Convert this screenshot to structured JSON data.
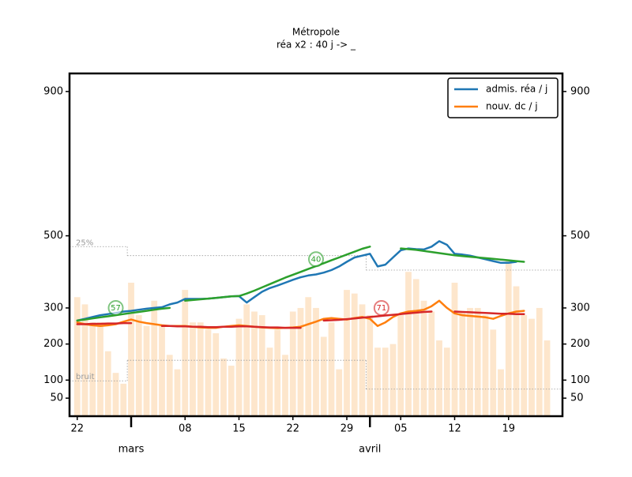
{
  "chart_data": {
    "type": "line",
    "title": "Métropole",
    "subtitle": "réa x2 : 40 j -> _",
    "x": [
      0,
      1,
      2,
      3,
      4,
      5,
      6,
      7,
      8,
      9,
      10,
      11,
      12,
      13,
      14,
      15,
      16,
      17,
      18,
      19,
      20,
      21,
      22,
      23,
      24,
      25,
      26,
      27,
      28,
      29,
      30,
      31,
      32,
      33,
      34,
      35,
      36,
      37,
      38,
      39,
      40,
      41,
      42,
      43,
      44,
      45,
      46,
      47,
      48,
      49,
      50,
      51,
      52,
      53,
      54,
      55,
      56,
      57,
      58,
      59,
      60,
      61,
      62
    ],
    "xlim": [
      -1,
      63
    ],
    "xticks": [
      {
        "value": 0,
        "label": "22"
      },
      {
        "value": 14,
        "label": "08"
      },
      {
        "value": 21,
        "label": "15"
      },
      {
        "value": 28,
        "label": "22"
      },
      {
        "value": 35,
        "label": "29"
      },
      {
        "value": 42,
        "label": "05"
      },
      {
        "value": 49,
        "label": "12"
      },
      {
        "value": 56,
        "label": "19"
      }
    ],
    "xticks_major": [
      {
        "value": 7,
        "label": "mars"
      },
      {
        "value": 38,
        "label": "avril"
      }
    ],
    "ylim": [
      0,
      950
    ],
    "yticks": [
      50,
      100,
      200,
      300,
      500,
      900
    ],
    "y2lim": [
      0,
      950
    ],
    "y2ticks": [
      50,
      100,
      200,
      300,
      500,
      900
    ],
    "legend": "upper right",
    "bars": {
      "color": "#fde6cc",
      "values": [
        330,
        310,
        260,
        260,
        180,
        120,
        90,
        370,
        280,
        250,
        320,
        250,
        170,
        130,
        350,
        260,
        260,
        240,
        230,
        160,
        140,
        270,
        310,
        290,
        280,
        190,
        240,
        170,
        290,
        300,
        330,
        300,
        220,
        260,
        130,
        350,
        340,
        310,
        280,
        190,
        190,
        200,
        280,
        400,
        380,
        320,
        290,
        210,
        190,
        370,
        290,
        300,
        300,
        280,
        240,
        130,
        430,
        360,
        280,
        270,
        300,
        210,
        null
      ]
    },
    "series": [
      {
        "name": "admis. réa / j",
        "color": "#1f77b4",
        "values": [
          265,
          270,
          275,
          280,
          283,
          286,
          290,
          292,
          295,
          298,
          300,
          302,
          310,
          315,
          325,
          325,
          325,
          326,
          328,
          330,
          332,
          333,
          315,
          330,
          345,
          355,
          362,
          370,
          378,
          385,
          390,
          393,
          398,
          405,
          415,
          428,
          440,
          445,
          450,
          415,
          420,
          440,
          460,
          465,
          463,
          462,
          470,
          485,
          475,
          450,
          448,
          445,
          440,
          435,
          430,
          425,
          425,
          428,
          null,
          null,
          null,
          null,
          null
        ]
      },
      {
        "name": "nouv. dc / j",
        "color": "#ff7f0e",
        "values": [
          260,
          255,
          252,
          250,
          252,
          255,
          262,
          268,
          262,
          258,
          255,
          252,
          250,
          250,
          250,
          248,
          246,
          245,
          245,
          248,
          250,
          252,
          250,
          248,
          246,
          245,
          244,
          245,
          246,
          248,
          255,
          262,
          270,
          272,
          270,
          268,
          272,
          275,
          270,
          250,
          260,
          275,
          285,
          290,
          292,
          295,
          305,
          320,
          300,
          285,
          280,
          278,
          276,
          274,
          270,
          278,
          285,
          290,
          292,
          null,
          null,
          null,
          null
        ]
      }
    ],
    "trend_lines": [
      {
        "color": "#2ca02c",
        "values": [
          265,
          268,
          271,
          274,
          277,
          280,
          283,
          286,
          289,
          292,
          295,
          298,
          300,
          null,
          320,
          322,
          324,
          326,
          328,
          330,
          332,
          333,
          340,
          348,
          357,
          366,
          375,
          384,
          392,
          400,
          408,
          416,
          424,
          432,
          440,
          448,
          456,
          464,
          470,
          null,
          null,
          null,
          465,
          463,
          461,
          458,
          455,
          452,
          449,
          446,
          444,
          442,
          440,
          438,
          436,
          434,
          432,
          430,
          428,
          null,
          null,
          null,
          null
        ]
      },
      {
        "color": "#d62728",
        "values": [
          255,
          255,
          256,
          256,
          257,
          257,
          258,
          258,
          null,
          null,
          null,
          250,
          250,
          249,
          249,
          248,
          248,
          247,
          247,
          248,
          248,
          249,
          249,
          248,
          247,
          246,
          246,
          245,
          245,
          245,
          null,
          null,
          265,
          266,
          267,
          269,
          271,
          273,
          275,
          277,
          279,
          281,
          283,
          285,
          287,
          289,
          290,
          null,
          null,
          290,
          289,
          288,
          287,
          286,
          285,
          284,
          284,
          283,
          283,
          null,
          null,
          null,
          null
        ]
      }
    ],
    "reference_lines": [
      {
        "label": "25%",
        "breaks": [
          -1,
          6.5,
          37.5,
          63
        ],
        "values": [
          470,
          445,
          405
        ]
      },
      {
        "label": "bruit",
        "breaks": [
          -1,
          6.5,
          37.5,
          63
        ],
        "values": [
          98,
          155,
          75
        ]
      }
    ],
    "annotations": [
      {
        "text": "57",
        "x": 5,
        "y": 300,
        "color": "#2ca02c"
      },
      {
        "text": "40",
        "x": 31,
        "y": 435,
        "color": "#2ca02c"
      },
      {
        "text": "71",
        "x": 39.5,
        "y": 300,
        "color": "#d62728"
      }
    ]
  }
}
